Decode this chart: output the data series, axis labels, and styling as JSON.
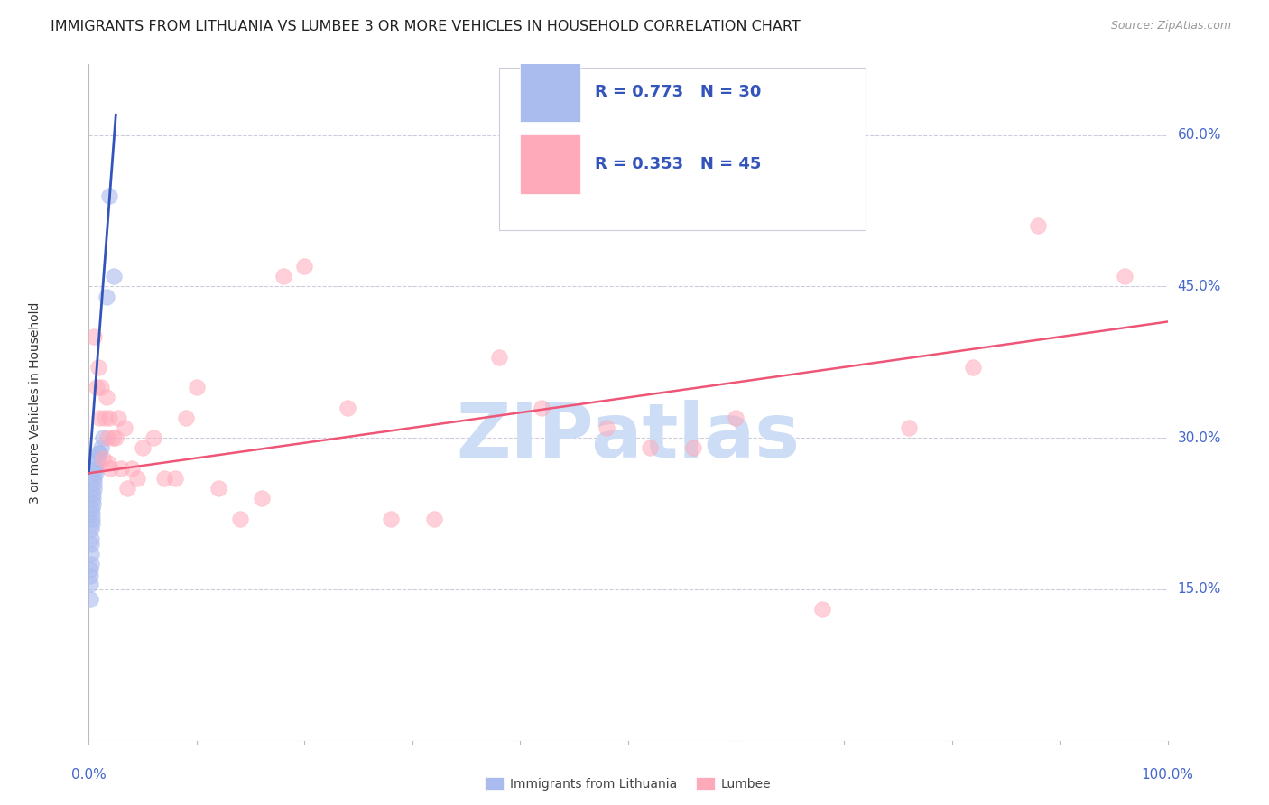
{
  "title": "IMMIGRANTS FROM LITHUANIA VS LUMBEE 3 OR MORE VEHICLES IN HOUSEHOLD CORRELATION CHART",
  "source": "Source: ZipAtlas.com",
  "ylabel": "3 or more Vehicles in Household",
  "ytick_values": [
    0.0,
    0.15,
    0.3,
    0.45,
    0.6
  ],
  "ytick_labels": [
    "",
    "15.0%",
    "30.0%",
    "45.0%",
    "60.0%"
  ],
  "ylim": [
    0.0,
    0.67
  ],
  "xlim": [
    0.0,
    1.0
  ],
  "legend_r1": "R = 0.773",
  "legend_n1": "N = 30",
  "legend_r2": "R = 0.353",
  "legend_n2": "N = 45",
  "watermark": "ZIPatlas",
  "blue_scatter_x": [
    0.001,
    0.001,
    0.001,
    0.001,
    0.002,
    0.002,
    0.002,
    0.002,
    0.002,
    0.003,
    0.003,
    0.003,
    0.003,
    0.004,
    0.004,
    0.004,
    0.005,
    0.005,
    0.005,
    0.006,
    0.006,
    0.007,
    0.008,
    0.009,
    0.01,
    0.011,
    0.013,
    0.016,
    0.019,
    0.023
  ],
  "blue_scatter_y": [
    0.14,
    0.155,
    0.163,
    0.17,
    0.175,
    0.185,
    0.195,
    0.2,
    0.21,
    0.215,
    0.22,
    0.225,
    0.23,
    0.235,
    0.24,
    0.245,
    0.25,
    0.255,
    0.26,
    0.265,
    0.27,
    0.275,
    0.28,
    0.285,
    0.285,
    0.29,
    0.3,
    0.44,
    0.54,
    0.46
  ],
  "pink_scatter_x": [
    0.005,
    0.007,
    0.009,
    0.01,
    0.011,
    0.013,
    0.015,
    0.016,
    0.017,
    0.018,
    0.019,
    0.02,
    0.022,
    0.025,
    0.027,
    0.03,
    0.033,
    0.036,
    0.04,
    0.045,
    0.05,
    0.06,
    0.07,
    0.08,
    0.09,
    0.1,
    0.12,
    0.14,
    0.16,
    0.18,
    0.2,
    0.24,
    0.28,
    0.32,
    0.38,
    0.42,
    0.48,
    0.52,
    0.56,
    0.6,
    0.68,
    0.76,
    0.82,
    0.88,
    0.96
  ],
  "pink_scatter_y": [
    0.4,
    0.35,
    0.37,
    0.32,
    0.35,
    0.28,
    0.32,
    0.34,
    0.3,
    0.275,
    0.32,
    0.27,
    0.3,
    0.3,
    0.32,
    0.27,
    0.31,
    0.25,
    0.27,
    0.26,
    0.29,
    0.3,
    0.26,
    0.26,
    0.32,
    0.35,
    0.25,
    0.22,
    0.24,
    0.46,
    0.47,
    0.33,
    0.22,
    0.22,
    0.38,
    0.33,
    0.31,
    0.29,
    0.29,
    0.32,
    0.13,
    0.31,
    0.37,
    0.51,
    0.46
  ],
  "blue_line_x": [
    0.0,
    0.025
  ],
  "blue_line_y": [
    0.265,
    0.62
  ],
  "pink_line_x": [
    0.0,
    1.0
  ],
  "pink_line_y": [
    0.265,
    0.415
  ],
  "blue_dot_color": "#aabbee",
  "pink_dot_color": "#ffaabb",
  "blue_line_color": "#3355bb",
  "pink_line_color": "#ee5577",
  "axis_color": "#4466cc",
  "grid_color": "#ccccdd",
  "background_color": "#ffffff",
  "title_fontsize": 11.5,
  "source_fontsize": 9,
  "ylabel_fontsize": 10,
  "legend_fontsize": 13,
  "tick_fontsize": 11,
  "watermark_color": "#ccddf5",
  "watermark_fontsize": 60,
  "legend_blue_fill": "#aabbee",
  "legend_pink_fill": "#ffaabb",
  "legend_text_color": "#3355bb",
  "legend_pink_text_color": "#ee5577"
}
